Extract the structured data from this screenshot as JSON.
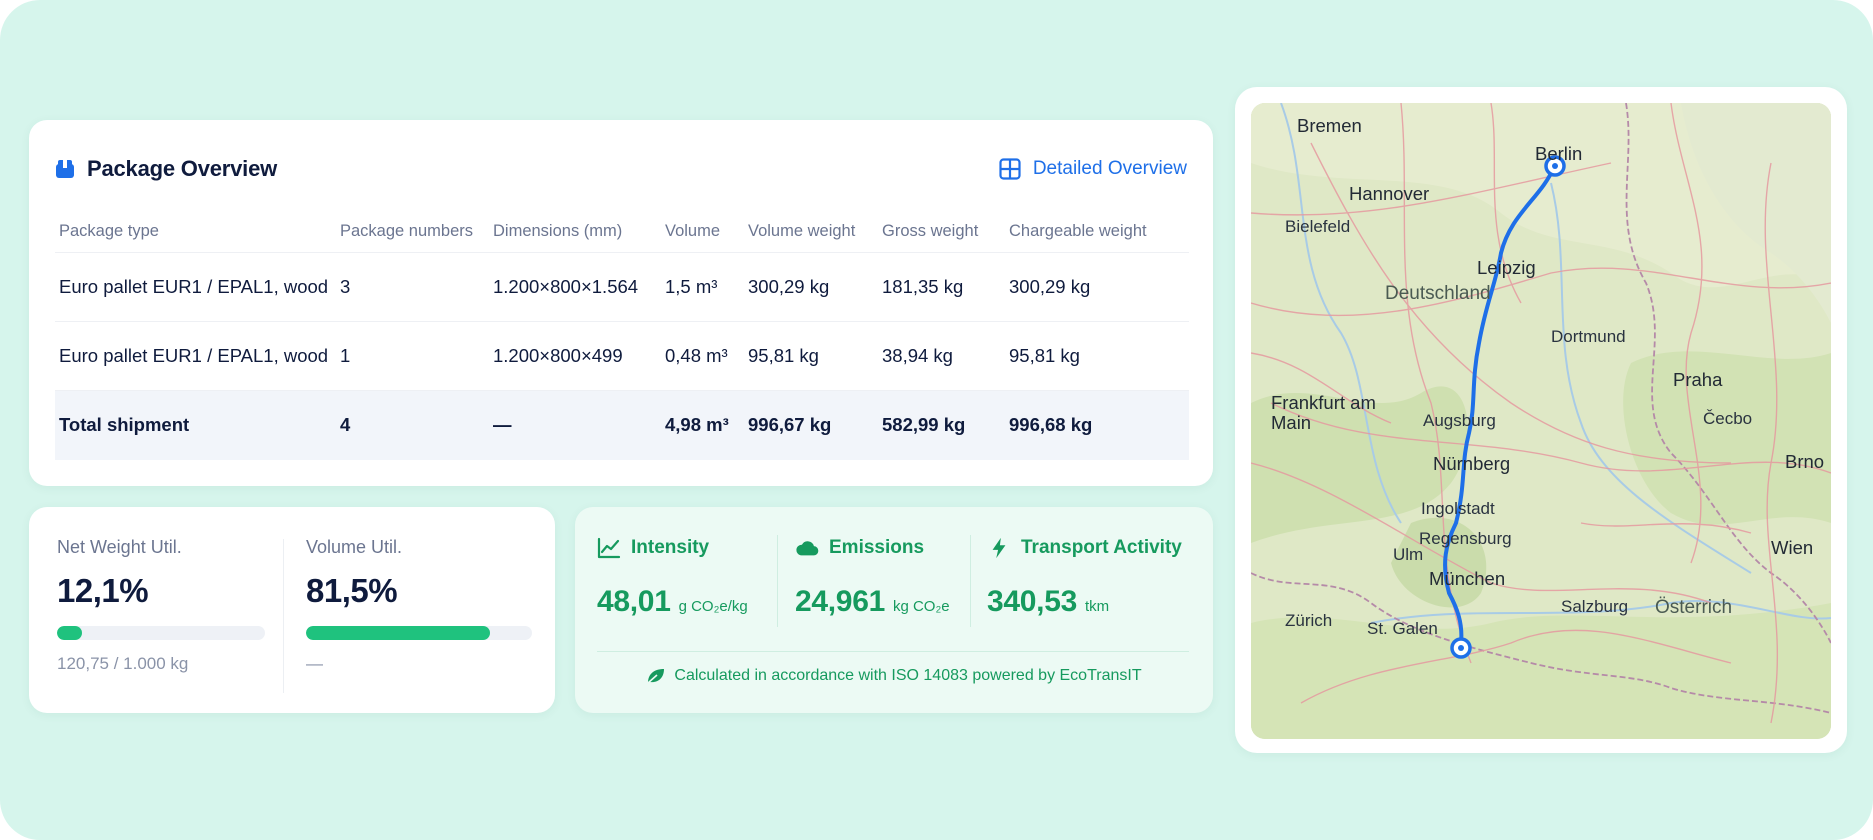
{
  "package_overview": {
    "title": "Package Overview",
    "icon": "package-icon",
    "detail_link": "Detailed Overview",
    "columns": [
      "Package type",
      "Package numbers",
      "Dimensions (mm)",
      "Volume",
      "Volume weight",
      "Gross weight",
      "Chargeable weight"
    ],
    "rows": [
      [
        "Euro pallet EUR1 / EPAL1, wood",
        "3",
        "1.200×800×1.564",
        "1,5 m³",
        "300,29 kg",
        "181,35 kg",
        "300,29 kg"
      ],
      [
        "Euro pallet EUR1 / EPAL1, wood",
        "1",
        "1.200×800×499",
        "0,48 m³",
        "95,81 kg",
        "38,94 kg",
        "95,81 kg"
      ]
    ],
    "total": [
      "Total shipment",
      "4",
      "—",
      "4,98 m³",
      "996,67 kg",
      "582,99 kg",
      "996,68 kg"
    ]
  },
  "utilization": {
    "net_weight": {
      "label": "Net Weight Util.",
      "value": "12,1%",
      "fill": 0.121,
      "sub": "120,75 / 1.000 kg"
    },
    "volume": {
      "label": "Volume Util.",
      "value": "81,5%",
      "fill": 0.815,
      "sub": "—"
    }
  },
  "emissions": {
    "intensity": {
      "label": "Intensity",
      "value": "48,01",
      "unit": "g CO₂e/kg",
      "icon": "line-chart-icon"
    },
    "emissions": {
      "label": "Emissions",
      "value": "24,961",
      "unit": "kg CO₂e",
      "icon": "cloud-icon"
    },
    "activity": {
      "label": "Transport Activity",
      "value": "340,53",
      "unit": "tkm",
      "icon": "lightning-icon"
    },
    "footer": "Calculated in accordance with ISO 14083 powered by EcoTransIT",
    "accent": "#169a5e"
  },
  "map": {
    "route_color": "#1e6fe8",
    "origin": "Berlin",
    "destination": "München",
    "labels": [
      "Bremen",
      "Berlin",
      "Hannover",
      "Leipzig",
      "Deutschland",
      "Frankfurt am Main",
      "Praha",
      "Augsburg",
      "Nürnberg",
      "Ingolstadt",
      "München",
      "Zürich",
      "St. Galen",
      "Wien",
      "Brno",
      "Čecbo",
      "Salzburg",
      "Österrich",
      "Bielefeld",
      "Dortmund",
      "Ulm",
      "Regensburg"
    ]
  }
}
